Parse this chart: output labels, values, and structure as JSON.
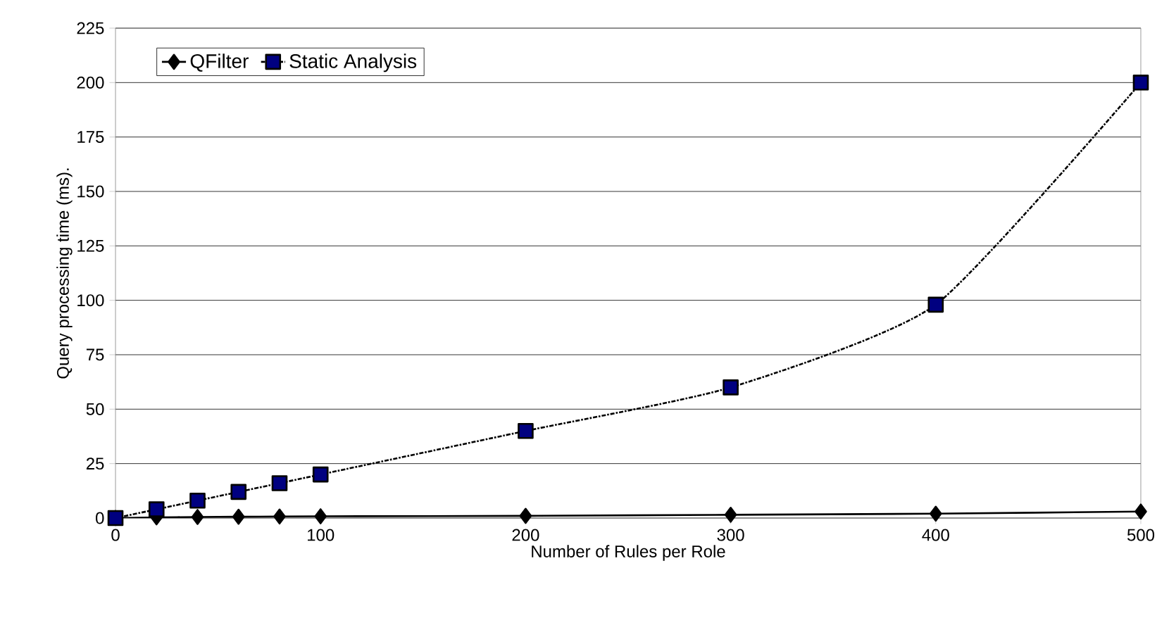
{
  "chart_data": {
    "type": "line",
    "xlabel": "Number of Rules per Role",
    "ylabel": "Query processing time (ms).",
    "x": [
      0,
      20,
      40,
      60,
      80,
      100,
      200,
      300,
      400,
      500
    ],
    "series": [
      {
        "name": "QFilter",
        "color": "#000000",
        "marker": "diamond",
        "line_style": "solid",
        "values": [
          0,
          0.3,
          0.5,
          0.6,
          0.7,
          0.8,
          1,
          1.5,
          2,
          3
        ]
      },
      {
        "name": "Static Analysis",
        "color": "#000080",
        "marker": "square",
        "line_style": "dotted",
        "values": [
          0,
          4,
          8,
          12,
          16,
          20,
          40,
          60,
          98,
          200
        ]
      }
    ],
    "xlim": [
      0,
      500
    ],
    "xticks": [
      0,
      100,
      200,
      300,
      400,
      500
    ],
    "ylim": [
      0,
      225
    ],
    "yticks": [
      0,
      25,
      50,
      75,
      100,
      125,
      150,
      175,
      200,
      225
    ],
    "grid": "y",
    "legend": "top left"
  }
}
